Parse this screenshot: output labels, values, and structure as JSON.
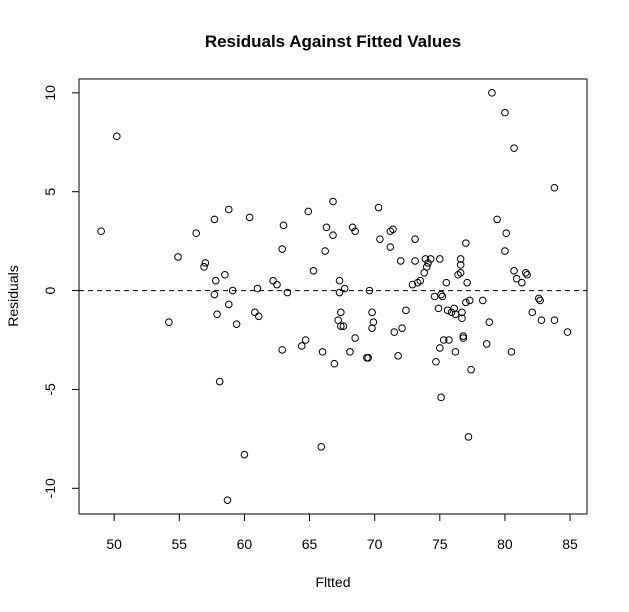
{
  "chart_data": {
    "type": "scatter",
    "title": "Residuals Against Fitted Values",
    "xlabel": "Fltted",
    "ylabel": "Residuals",
    "xlim": [
      47.3,
      86.3
    ],
    "ylim": [
      -11.3,
      10.7
    ],
    "x_ticks": [
      50,
      55,
      60,
      65,
      70,
      75,
      80,
      85
    ],
    "y_ticks": [
      -10,
      -5,
      0,
      5,
      10
    ],
    "grid": false,
    "legend": "none",
    "reference_line": {
      "y": 0,
      "style": "dashed"
    },
    "points": [
      {
        "x": 49.0,
        "y": 3.0
      },
      {
        "x": 50.2,
        "y": 7.8
      },
      {
        "x": 54.2,
        "y": -1.6
      },
      {
        "x": 54.9,
        "y": 1.7
      },
      {
        "x": 56.3,
        "y": 2.9
      },
      {
        "x": 56.9,
        "y": 1.2
      },
      {
        "x": 57.0,
        "y": 1.4
      },
      {
        "x": 57.7,
        "y": 3.6
      },
      {
        "x": 57.8,
        "y": 0.5
      },
      {
        "x": 57.7,
        "y": -0.2
      },
      {
        "x": 57.9,
        "y": -1.2
      },
      {
        "x": 58.1,
        "y": -4.6
      },
      {
        "x": 58.5,
        "y": 0.8
      },
      {
        "x": 58.8,
        "y": 4.1
      },
      {
        "x": 58.8,
        "y": -0.7
      },
      {
        "x": 59.1,
        "y": 0.0
      },
      {
        "x": 58.7,
        "y": -10.6
      },
      {
        "x": 59.4,
        "y": -1.7
      },
      {
        "x": 60.0,
        "y": -8.3
      },
      {
        "x": 60.4,
        "y": 3.7
      },
      {
        "x": 60.8,
        "y": -1.1
      },
      {
        "x": 61.0,
        "y": 0.1
      },
      {
        "x": 61.1,
        "y": -1.3
      },
      {
        "x": 62.2,
        "y": 0.5
      },
      {
        "x": 62.5,
        "y": 0.3
      },
      {
        "x": 63.0,
        "y": 3.3
      },
      {
        "x": 62.9,
        "y": 2.1
      },
      {
        "x": 63.3,
        "y": -0.1
      },
      {
        "x": 62.9,
        "y": -3.0
      },
      {
        "x": 64.4,
        "y": -2.8
      },
      {
        "x": 64.7,
        "y": -2.5
      },
      {
        "x": 64.9,
        "y": 4.0
      },
      {
        "x": 65.3,
        "y": 1.0
      },
      {
        "x": 65.9,
        "y": -7.9
      },
      {
        "x": 66.0,
        "y": -3.1
      },
      {
        "x": 66.3,
        "y": 3.2
      },
      {
        "x": 66.2,
        "y": 2.0
      },
      {
        "x": 66.8,
        "y": 2.8
      },
      {
        "x": 66.8,
        "y": 4.5
      },
      {
        "x": 66.9,
        "y": -3.7
      },
      {
        "x": 67.2,
        "y": -1.5
      },
      {
        "x": 67.3,
        "y": -0.1
      },
      {
        "x": 67.3,
        "y": 0.5
      },
      {
        "x": 67.4,
        "y": -1.8
      },
      {
        "x": 67.4,
        "y": -1.1
      },
      {
        "x": 67.7,
        "y": 0.1
      },
      {
        "x": 67.6,
        "y": -1.8
      },
      {
        "x": 68.1,
        "y": -3.1
      },
      {
        "x": 68.3,
        "y": 3.2
      },
      {
        "x": 68.5,
        "y": 3.0
      },
      {
        "x": 68.5,
        "y": -2.4
      },
      {
        "x": 69.4,
        "y": -3.4
      },
      {
        "x": 69.5,
        "y": -3.4
      },
      {
        "x": 69.6,
        "y": 0.0
      },
      {
        "x": 69.8,
        "y": -1.1
      },
      {
        "x": 69.9,
        "y": -1.6
      },
      {
        "x": 69.8,
        "y": -1.9
      },
      {
        "x": 70.3,
        "y": 4.2
      },
      {
        "x": 70.4,
        "y": 2.6
      },
      {
        "x": 71.2,
        "y": 2.2
      },
      {
        "x": 71.2,
        "y": 3.0
      },
      {
        "x": 71.4,
        "y": 3.1
      },
      {
        "x": 71.5,
        "y": -2.1
      },
      {
        "x": 71.8,
        "y": -3.3
      },
      {
        "x": 72.0,
        "y": 1.5
      },
      {
        "x": 72.1,
        "y": -1.9
      },
      {
        "x": 72.4,
        "y": -1.0
      },
      {
        "x": 72.9,
        "y": 0.3
      },
      {
        "x": 73.1,
        "y": 1.5
      },
      {
        "x": 73.1,
        "y": 2.6
      },
      {
        "x": 73.3,
        "y": 0.4
      },
      {
        "x": 73.5,
        "y": 0.5
      },
      {
        "x": 73.8,
        "y": 0.9
      },
      {
        "x": 73.9,
        "y": 1.6
      },
      {
        "x": 74.0,
        "y": 1.2
      },
      {
        "x": 74.1,
        "y": 1.4
      },
      {
        "x": 74.3,
        "y": 1.6
      },
      {
        "x": 74.6,
        "y": -0.3
      },
      {
        "x": 74.7,
        "y": -3.6
      },
      {
        "x": 74.9,
        "y": -0.9
      },
      {
        "x": 75.0,
        "y": 1.6
      },
      {
        "x": 75.0,
        "y": -2.9
      },
      {
        "x": 75.1,
        "y": -0.2
      },
      {
        "x": 75.2,
        "y": -0.3
      },
      {
        "x": 75.3,
        "y": -2.5
      },
      {
        "x": 75.1,
        "y": -5.4
      },
      {
        "x": 75.6,
        "y": -1.0
      },
      {
        "x": 75.5,
        "y": 0.4
      },
      {
        "x": 75.7,
        "y": -2.5
      },
      {
        "x": 75.9,
        "y": -1.1
      },
      {
        "x": 76.1,
        "y": -0.9
      },
      {
        "x": 76.2,
        "y": -1.2
      },
      {
        "x": 76.2,
        "y": -3.1
      },
      {
        "x": 76.4,
        "y": 0.8
      },
      {
        "x": 76.6,
        "y": 1.6
      },
      {
        "x": 76.6,
        "y": 0.9
      },
      {
        "x": 76.6,
        "y": 1.3
      },
      {
        "x": 76.7,
        "y": -1.1
      },
      {
        "x": 76.7,
        "y": -1.4
      },
      {
        "x": 76.8,
        "y": -2.4
      },
      {
        "x": 76.8,
        "y": -2.3
      },
      {
        "x": 77.0,
        "y": 2.4
      },
      {
        "x": 77.0,
        "y": -0.6
      },
      {
        "x": 77.1,
        "y": 0.4
      },
      {
        "x": 77.2,
        "y": -7.4
      },
      {
        "x": 77.4,
        "y": -4.0
      },
      {
        "x": 77.3,
        "y": -0.5
      },
      {
        "x": 78.3,
        "y": -0.5
      },
      {
        "x": 78.6,
        "y": -2.7
      },
      {
        "x": 78.8,
        "y": -1.6
      },
      {
        "x": 79.0,
        "y": 10.0
      },
      {
        "x": 79.4,
        "y": 3.6
      },
      {
        "x": 80.0,
        "y": 9.0
      },
      {
        "x": 80.0,
        "y": 2.0
      },
      {
        "x": 80.1,
        "y": 2.9
      },
      {
        "x": 80.5,
        "y": -3.1
      },
      {
        "x": 80.7,
        "y": 7.2
      },
      {
        "x": 80.7,
        "y": 1.0
      },
      {
        "x": 80.9,
        "y": 0.6
      },
      {
        "x": 81.3,
        "y": 0.4
      },
      {
        "x": 81.6,
        "y": 0.9
      },
      {
        "x": 81.7,
        "y": 0.8
      },
      {
        "x": 82.1,
        "y": -1.1
      },
      {
        "x": 82.6,
        "y": -0.4
      },
      {
        "x": 82.7,
        "y": -0.5
      },
      {
        "x": 82.8,
        "y": -1.5
      },
      {
        "x": 83.8,
        "y": 5.2
      },
      {
        "x": 83.8,
        "y": -1.5
      },
      {
        "x": 84.8,
        "y": -2.1
      }
    ]
  }
}
